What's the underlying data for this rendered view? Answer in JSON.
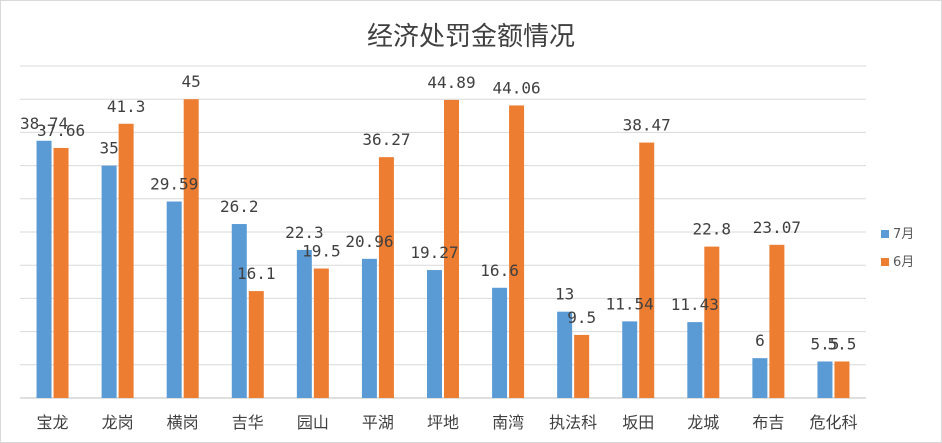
{
  "chart_data": {
    "type": "bar",
    "title": "经济处罚金额情况",
    "categories": [
      "宝龙",
      "龙岗",
      "横岗",
      "吉华",
      "园山",
      "平湖",
      "坪地",
      "南湾",
      "执法科",
      "坂田",
      "龙城",
      "布吉",
      "危化科"
    ],
    "series": [
      {
        "name": "7月",
        "color": "#5b9bd5",
        "values": [
          38.74,
          35,
          29.59,
          26.2,
          22.3,
          20.96,
          19.27,
          16.6,
          13,
          11.54,
          11.43,
          6,
          5.5
        ]
      },
      {
        "name": "6月",
        "color": "#ed7d31",
        "values": [
          37.66,
          41.3,
          45,
          16.1,
          19.5,
          36.27,
          44.89,
          44.06,
          9.5,
          38.47,
          22.8,
          23.07,
          5.5
        ]
      }
    ],
    "ylim": [
      0,
      50
    ],
    "grid": true,
    "legend_position": "right"
  }
}
